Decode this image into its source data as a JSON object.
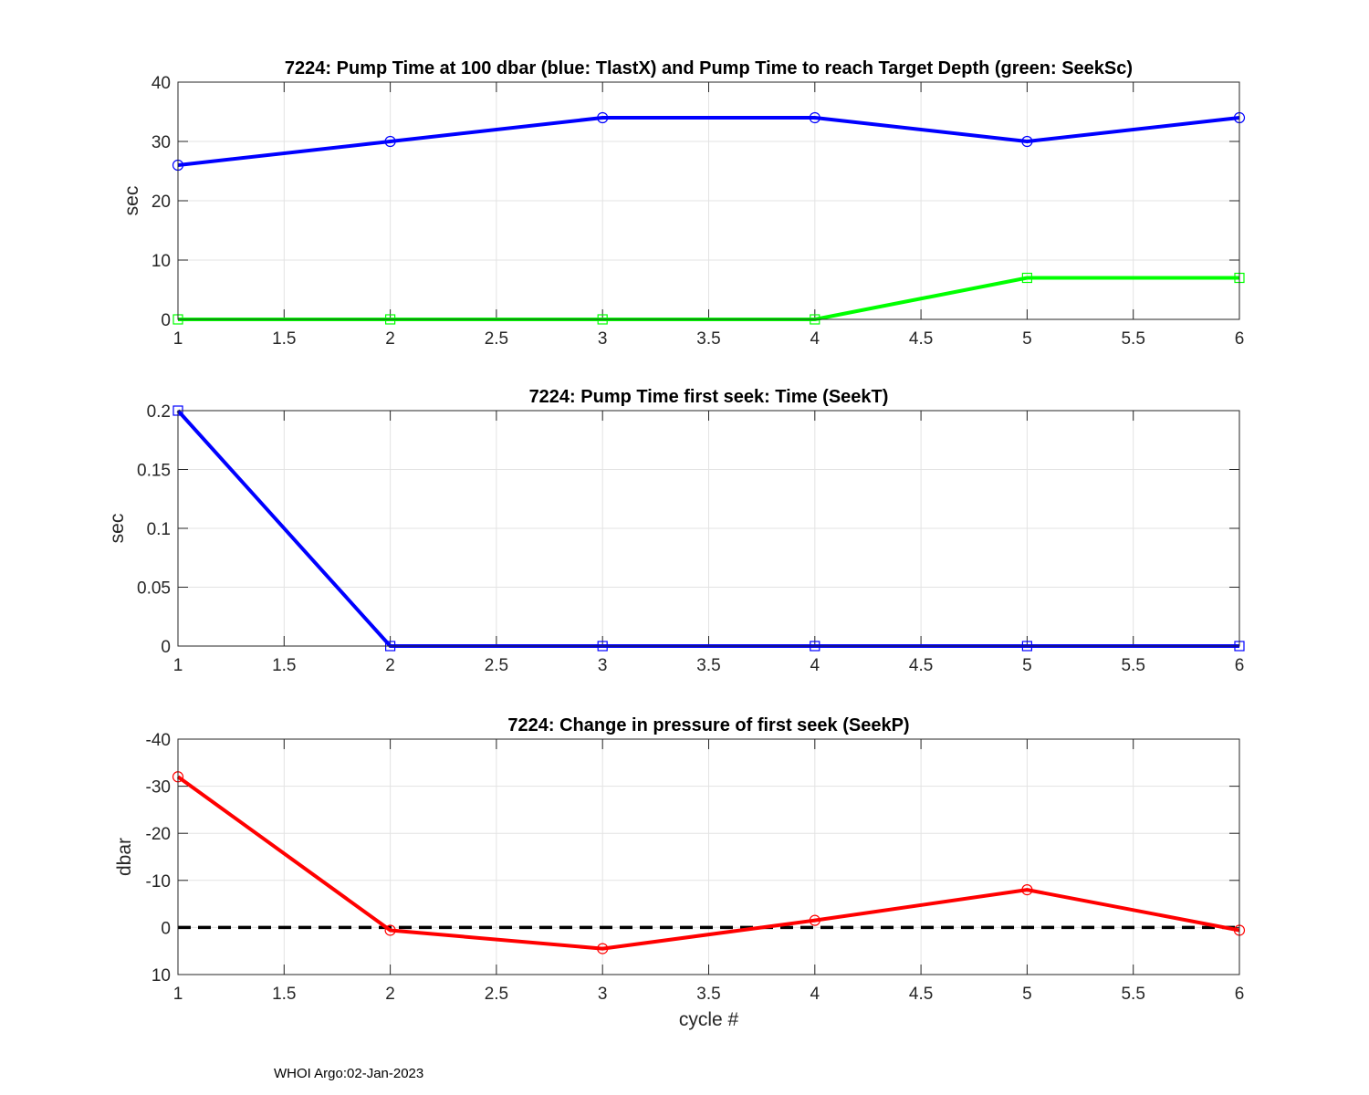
{
  "footer": "WHOI Argo:02-Jan-2023",
  "chart_data": [
    {
      "type": "line",
      "title": "7224:  Pump Time at 100 dbar (blue: TlastX) and Pump Time to reach Target Depth (green: SeekSc)",
      "xlabel": "",
      "ylabel": "sec",
      "xlim": [
        1,
        6
      ],
      "ylim": [
        0,
        40
      ],
      "y_reversed": false,
      "grid": true,
      "xticks": [
        1,
        1.5,
        2,
        2.5,
        3,
        3.5,
        4,
        4.5,
        5,
        5.5,
        6
      ],
      "xtick_labels": [
        "1",
        "1.5",
        "2",
        "2.5",
        "3",
        "3.5",
        "4",
        "4.5",
        "5",
        "5.5",
        "6"
      ],
      "yticks": [
        0,
        10,
        20,
        30,
        40
      ],
      "ytick_labels": [
        "0",
        "10",
        "20",
        "30",
        "40"
      ],
      "x": [
        1,
        2,
        3,
        4,
        5,
        6
      ],
      "series": [
        {
          "values": [
            26,
            30,
            34,
            34,
            30,
            34
          ],
          "color": "#0000ff",
          "marker": "circle"
        },
        {
          "values": [
            0,
            0,
            0,
            0,
            7,
            7
          ],
          "color": "#00ff00",
          "marker": "square"
        }
      ]
    },
    {
      "type": "line",
      "title": "7224: Pump Time first seek: Time (SeekT)",
      "xlabel": "",
      "ylabel": "sec",
      "xlim": [
        1,
        6
      ],
      "ylim": [
        0,
        0.2
      ],
      "y_reversed": false,
      "grid": true,
      "xticks": [
        1,
        1.5,
        2,
        2.5,
        3,
        3.5,
        4,
        4.5,
        5,
        5.5,
        6
      ],
      "xtick_labels": [
        "1",
        "1.5",
        "2",
        "2.5",
        "3",
        "3.5",
        "4",
        "4.5",
        "5",
        "5.5",
        "6"
      ],
      "yticks": [
        0,
        0.05,
        0.1,
        0.15,
        0.2
      ],
      "ytick_labels": [
        "0",
        "0.05",
        "0.1",
        "0.15",
        "0.2"
      ],
      "x": [
        1,
        2,
        3,
        4,
        5,
        6
      ],
      "series": [
        {
          "values": [
            0.2,
            0,
            0,
            0,
            0,
            0
          ],
          "color": "#0000ff",
          "marker": "square"
        }
      ]
    },
    {
      "type": "line",
      "title": "7224: Change in pressure of first seek (SeekP)",
      "xlabel": "cycle #",
      "ylabel": "dbar",
      "xlim": [
        1,
        6
      ],
      "ylim": [
        -40,
        10
      ],
      "y_reversed": true,
      "grid": true,
      "xticks": [
        1,
        1.5,
        2,
        2.5,
        3,
        3.5,
        4,
        4.5,
        5,
        5.5,
        6
      ],
      "xtick_labels": [
        "1",
        "1.5",
        "2",
        "2.5",
        "3",
        "3.5",
        "4",
        "4.5",
        "5",
        "5.5",
        "6"
      ],
      "yticks": [
        -40,
        -30,
        -20,
        -10,
        0,
        10
      ],
      "ytick_labels": [
        "-40",
        "-30",
        "-20",
        "-10",
        "0",
        "10"
      ],
      "x": [
        1,
        2,
        3,
        4,
        5,
        6
      ],
      "reference_line": {
        "y": 0,
        "color": "#000000",
        "style": "dashed"
      },
      "series": [
        {
          "values": [
            -32,
            0.6,
            4.5,
            -1.5,
            -8,
            0.6
          ],
          "color": "#ff0000",
          "marker": "circle"
        }
      ]
    }
  ]
}
